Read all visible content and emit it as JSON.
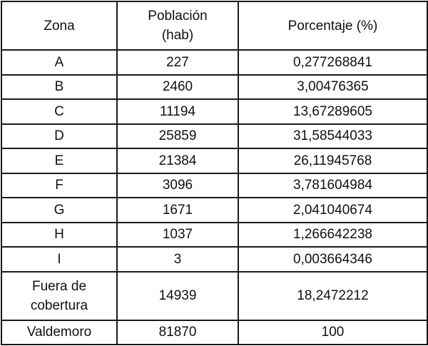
{
  "table": {
    "headers": [
      "Zona",
      "Población\n(hab)",
      "Porcentaje (%)"
    ],
    "header_lines": {
      "zona": "Zona",
      "poblacion_1": "Población",
      "poblacion_2": "(hab)",
      "porcentaje": "Porcentaje (%)"
    },
    "rows": [
      {
        "zona": "A",
        "poblacion": "227",
        "porcentaje": "0,277268841"
      },
      {
        "zona": "B",
        "poblacion": "2460",
        "porcentaje": "3,00476365"
      },
      {
        "zona": "C",
        "poblacion": "11194",
        "porcentaje": "13,67289605"
      },
      {
        "zona": "D",
        "poblacion": "25859",
        "porcentaje": "31,58544033"
      },
      {
        "zona": "E",
        "poblacion": "21384",
        "porcentaje": "26,11945768"
      },
      {
        "zona": "F",
        "poblacion": "3096",
        "porcentaje": "3,781604984"
      },
      {
        "zona": "G",
        "poblacion": "1671",
        "porcentaje": "2,041040674"
      },
      {
        "zona": "H",
        "poblacion": "1037",
        "porcentaje": "1,266642238"
      },
      {
        "zona": "I",
        "poblacion": "3",
        "porcentaje": "0,003664346"
      }
    ],
    "fuera": {
      "zona_1": "Fuera de",
      "zona_2": "cobertura",
      "poblacion": "14939",
      "porcentaje": "18,2472212"
    },
    "total": {
      "zona": "Valdemoro",
      "poblacion": "81870",
      "porcentaje": "100"
    }
  }
}
